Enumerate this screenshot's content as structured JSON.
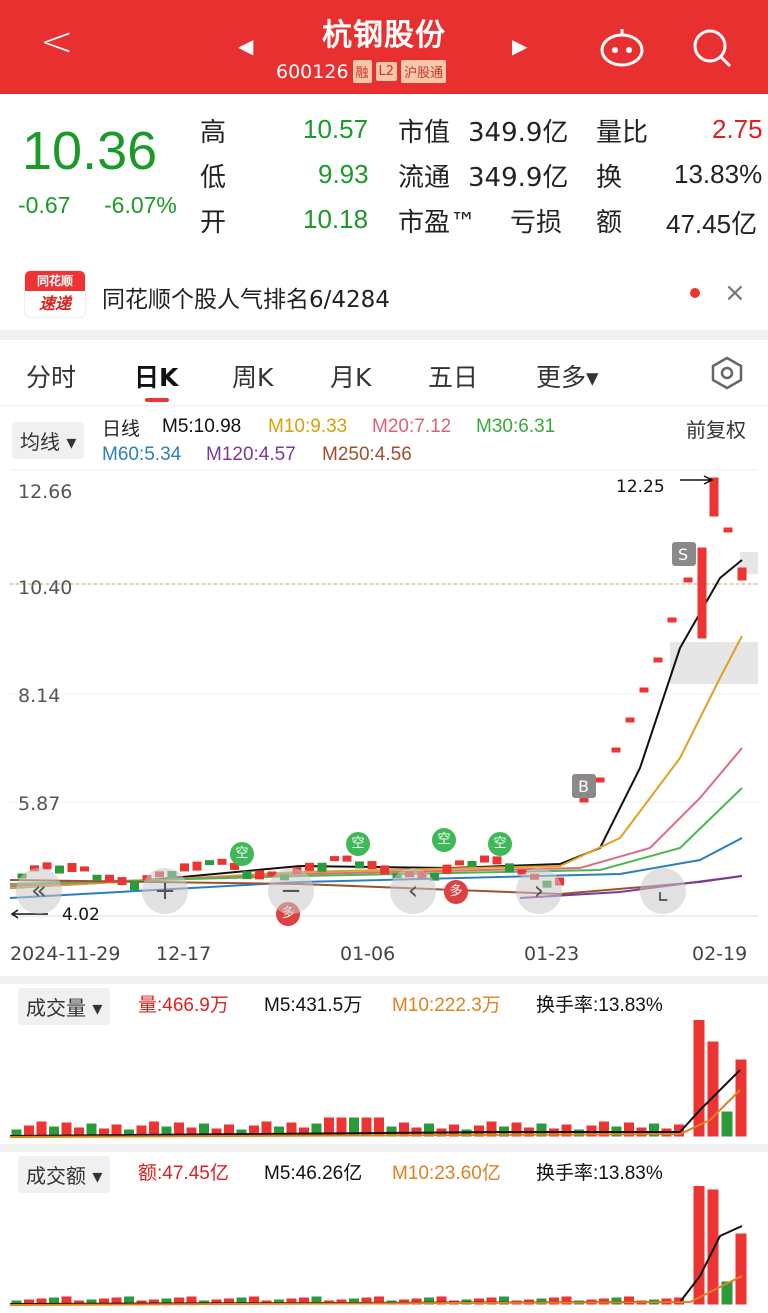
{
  "header": {
    "back": "<",
    "title": "杭钢股份",
    "prev": "◀",
    "next": "▶",
    "code": "600126",
    "tags": [
      "融",
      "L2",
      "沪股通"
    ]
  },
  "quote": {
    "price": "10.36",
    "change": "-0.67",
    "pct": "-6.07%",
    "high_label": "高",
    "high": "10.57",
    "low_label": "低",
    "low": "9.93",
    "open_label": "开",
    "open": "10.18",
    "mcap_label": "市值",
    "mcap": "349.9亿",
    "float_label": "流通",
    "float": "349.9亿",
    "pe_label": "市盈™",
    "pe": "亏损",
    "vr_label": "量比",
    "vr": "2.75",
    "turn_label": "换",
    "turn": "13.83%",
    "amt_label": "额",
    "amt": "47.45亿"
  },
  "news": {
    "logo_top": "同花顺",
    "logo_bottom": "速递",
    "text": "同花顺个股人气排名6/4284",
    "close": "×"
  },
  "tabs": [
    "分时",
    "日K",
    "周K",
    "月K",
    "五日",
    "更多▾"
  ],
  "chart": {
    "ma_btn": "均线 ▾",
    "ma_title": "日线",
    "m5": "M5:10.98",
    "m10": "M10:9.33",
    "m20": "M20:7.12",
    "m30": "M30:6.31",
    "m60": "M60:5.34",
    "m120": "M120:4.57",
    "m250": "M250:4.56",
    "adj": "前复权",
    "y_labels": [
      "12.66",
      "10.40",
      "8.14",
      "5.87"
    ],
    "hi_mark": "12.25",
    "lo_mark": "4.02",
    "x_labels": [
      "2024-11-29",
      "12-17",
      "01-06",
      "01-23",
      "02-19"
    ]
  },
  "vol": {
    "btn": "成交量 ▾",
    "v": "量:466.9万",
    "m5": "M5:431.5万",
    "m10": "M10:222.3万",
    "turn": "换手率:13.83%"
  },
  "amt": {
    "btn": "成交额 ▾",
    "v": "额:47.45亿",
    "m5": "M5:46.26亿",
    "m10": "M10:23.60亿",
    "turn": "换手率:13.83%"
  },
  "colors": {
    "red": "#e93030",
    "green": "#1a9a28"
  }
}
